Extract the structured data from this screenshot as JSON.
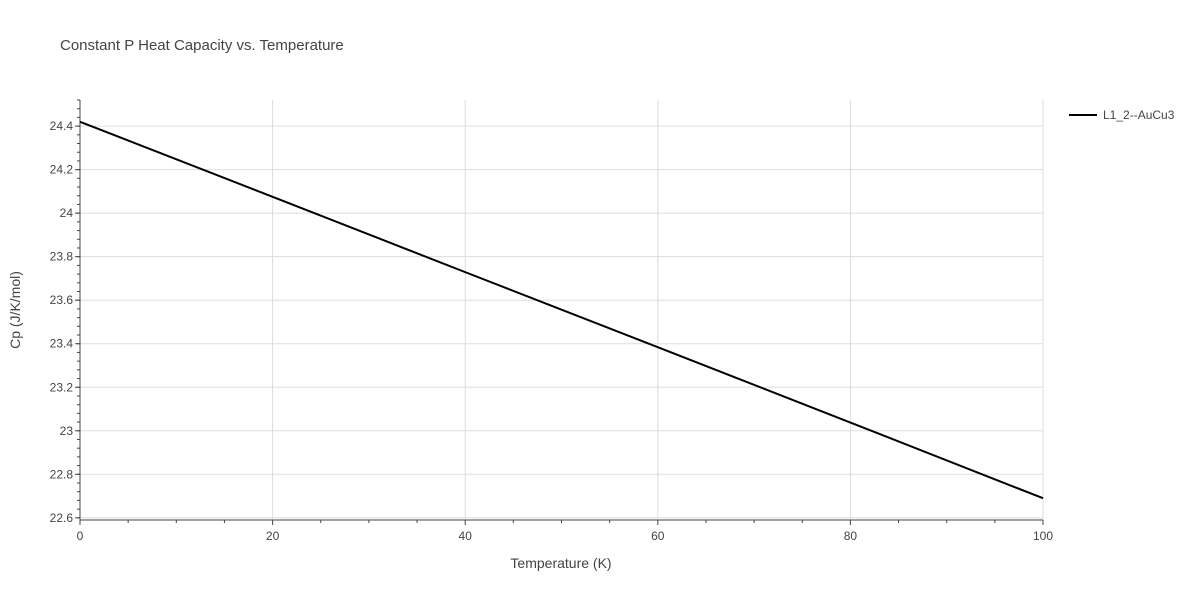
{
  "chart_data": {
    "type": "line",
    "title": "Constant P Heat Capacity vs. Temperature",
    "xlabel": "Temperature (K)",
    "ylabel": "Cp (J/K/mol)",
    "xlim": [
      0,
      100
    ],
    "ylim": [
      22.59,
      24.52
    ],
    "xticks": [
      0,
      20,
      40,
      60,
      80,
      100
    ],
    "xtick_labels": [
      "0",
      "20",
      "40",
      "60",
      "80",
      "100"
    ],
    "yticks": [
      22.6,
      22.8,
      23.0,
      23.2,
      23.4,
      23.6,
      23.8,
      24.0,
      24.2,
      24.4
    ],
    "ytick_labels": [
      "22.6",
      "22.8",
      "23",
      "23.2",
      "23.4",
      "23.6",
      "23.8",
      "24",
      "24.2",
      "24.4"
    ],
    "grid": true,
    "legend_position": "top-right",
    "series": [
      {
        "name": "L1_2--AuCu3",
        "color": "#000000",
        "x": [
          0,
          20,
          40,
          60,
          80,
          100
        ],
        "y": [
          24.42,
          24.075,
          23.729,
          23.384,
          23.038,
          22.69
        ]
      }
    ]
  }
}
